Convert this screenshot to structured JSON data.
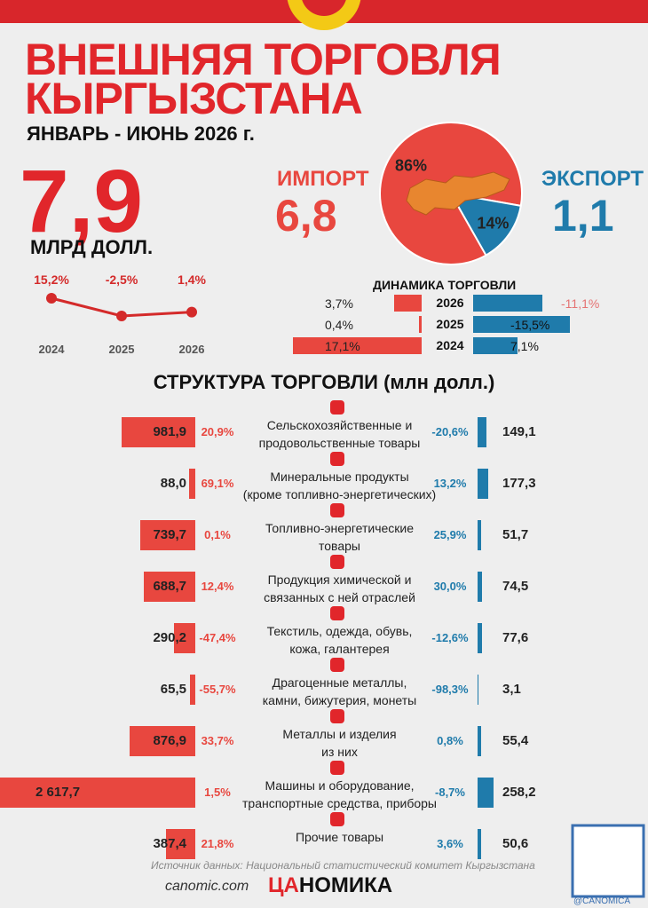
{
  "header": {
    "title_line1": "ВНЕШНЯЯ ТОРГОВЛЯ",
    "title_line2": "КЫРГЫЗСТАНА",
    "period": "ЯНВАРЬ  - ИЮНЬ 2026 г."
  },
  "summary": {
    "total": "7,9",
    "total_unit": "МЛРД ДОЛЛ.",
    "import_label": "ИМПОРТ",
    "import_total": "6,8",
    "export_label": "ЭКСПОРТ",
    "export_total": "1,1"
  },
  "chart_data": [
    {
      "type": "line",
      "categories": [
        "2024",
        "2025",
        "2026"
      ],
      "values": [
        15.2,
        -2.5,
        1.4
      ],
      "value_labels": [
        "15,2%",
        "-2,5%",
        "1,4%"
      ],
      "color": "#d42a2a"
    },
    {
      "type": "pie",
      "values": [
        86,
        14
      ],
      "value_labels": [
        "86%",
        "14%"
      ],
      "colors": [
        "#e8473f",
        "#1f7bab"
      ]
    },
    {
      "type": "bar",
      "title": "ДИНАМИКА ТОРГОВЛИ",
      "categories": [
        "2026",
        "2025",
        "2024"
      ],
      "series": [
        {
          "color": "#e8473f",
          "values": [
            3.7,
            0.4,
            17.1
          ],
          "value_labels": [
            "3,7%",
            "0,4%",
            "17,1%"
          ]
        },
        {
          "color": "#1f7bab",
          "values": [
            -11.1,
            -15.5,
            7.1
          ],
          "value_labels": [
            "-11,1%",
            "-15,5%",
            "7,1%"
          ]
        }
      ]
    },
    {
      "type": "bar",
      "title": "СТРУКТУРА ТОРГОВЛИ (млн долл.)",
      "categories": [
        "Сельскохозяйственные и\nпродовольственные товары",
        "Минеральные продукты\n(кроме топливно-энергетических)",
        "Топливно-энергетические\nтовары",
        "Продукция химической и\nсвязанных с ней отраслей",
        "Текстиль, одежда, обувь,\nкожа, галантерея",
        "Драгоценные металлы,\nкамни, бижутерия, монеты",
        "Металлы и изделия\nиз них",
        "Машины и оборудование,\nтранспортные средства, приборы",
        "Прочие товары"
      ],
      "series": [
        {
          "color": "#e8473f",
          "values": [
            981.9,
            88.0,
            739.7,
            688.7,
            290.2,
            65.5,
            876.9,
            2617.7,
            387.4
          ],
          "value_labels": [
            "981,9",
            "88,0",
            "739,7",
            "688,7",
            "290,2",
            "65,5",
            "876,9",
            "2 617,7",
            "387,4"
          ],
          "change_labels": [
            "20,9%",
            "69,1%",
            "0,1%",
            "12,4%",
            "-47,4%",
            "-55,7%",
            "33,7%",
            "1,5%",
            "21,8%"
          ]
        },
        {
          "color": "#1f7bab",
          "values": [
            149.1,
            177.3,
            51.7,
            74.5,
            77.6,
            3.1,
            55.4,
            258.2,
            50.6
          ],
          "value_labels": [
            "149,1",
            "177,3",
            "51,7",
            "74,5",
            "77,6",
            "3,1",
            "55,4",
            "258,2",
            "50,6"
          ],
          "change_labels": [
            "-20,6%",
            "13,2%",
            "25,9%",
            "30,0%",
            "-12,6%",
            "-98,3%",
            "0,8%",
            "-8,7%",
            "3,6%"
          ]
        }
      ]
    }
  ],
  "footer": {
    "source": "Источник данных: Национальный статистический комитет Кыргызстана",
    "site": "canomic.com",
    "logo_left": "ЦА",
    "logo_right": "НОМИКА",
    "handle": "@CANOMICA"
  }
}
